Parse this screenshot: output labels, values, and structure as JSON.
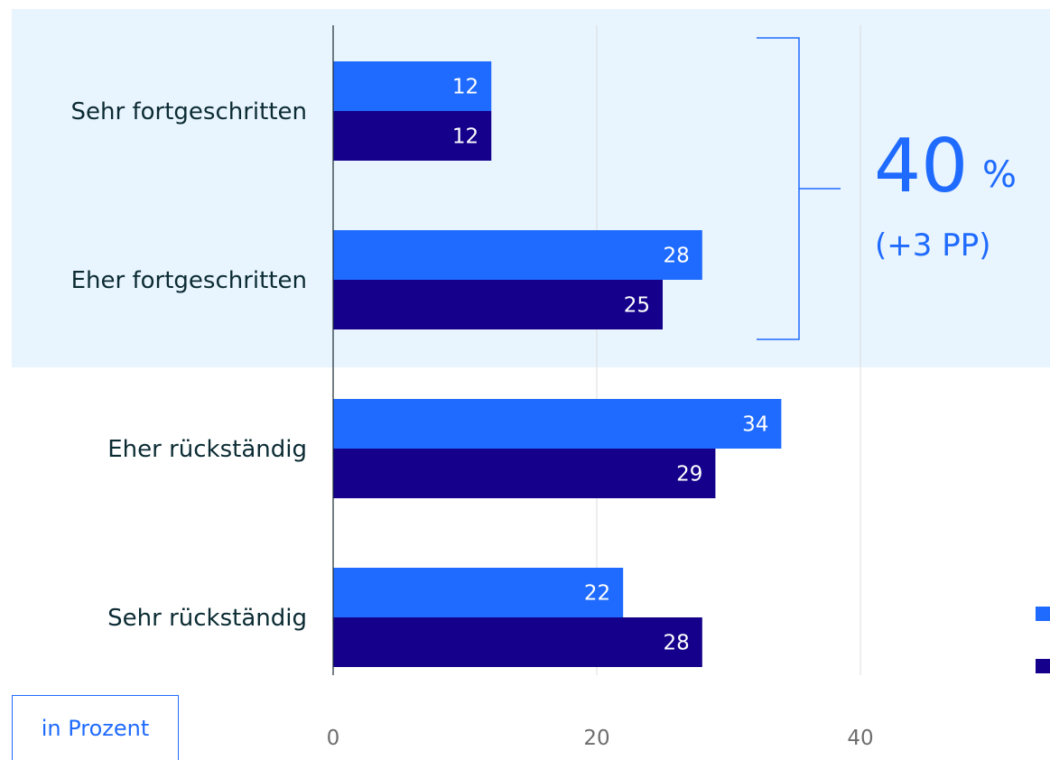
{
  "chart_data": {
    "type": "bar",
    "orientation": "horizontal",
    "categories": [
      "Sehr fortgeschritten",
      "Eher fortgeschritten",
      "Eher rückständig",
      "Sehr rückständig"
    ],
    "series": [
      {
        "values": [
          12,
          28,
          34,
          22
        ],
        "color": "#1f6bff"
      },
      {
        "values": [
          12,
          25,
          29,
          28
        ],
        "color": "#14008a"
      }
    ],
    "xticks": [
      "0",
      "20",
      "40"
    ],
    "xlim": [
      0,
      54
    ],
    "grid": true,
    "unit_label": "in Prozent",
    "highlight": {
      "categories": [
        "Sehr fortgeschritten",
        "Eher fortgeschritten"
      ],
      "value": "40",
      "unit": "%",
      "change": "(+3 PP)",
      "background": "#e8f4fe",
      "color": "#1f6bff"
    },
    "legend": {
      "position": "right",
      "entries": [
        "",
        ""
      ]
    }
  }
}
